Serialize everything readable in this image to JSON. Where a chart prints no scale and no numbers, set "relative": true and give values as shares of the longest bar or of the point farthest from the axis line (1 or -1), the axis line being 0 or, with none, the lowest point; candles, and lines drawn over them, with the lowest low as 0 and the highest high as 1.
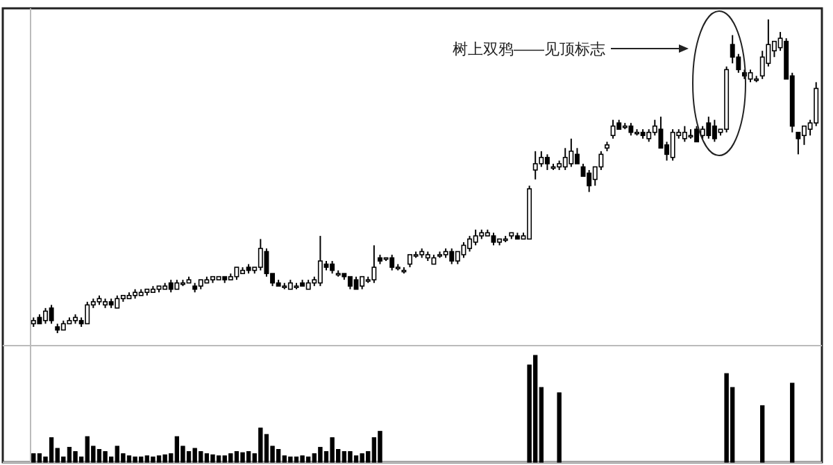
{
  "chart_data": [
    {
      "type": "candlestick",
      "relative": true,
      "color": "#000000",
      "annotations": [
        "树上双鸦——见顶标志"
      ],
      "categories": [
        null,
        null,
        null,
        null,
        null,
        null,
        null,
        null,
        null,
        null,
        null,
        null,
        null,
        null,
        null,
        null,
        null,
        null,
        null,
        null,
        null,
        null,
        null,
        null,
        null,
        null,
        null,
        null,
        null,
        null,
        null,
        null,
        null,
        null,
        null,
        null,
        null,
        null,
        null,
        null,
        null,
        null,
        null,
        null,
        null,
        null,
        null,
        null,
        null,
        null,
        null,
        null,
        null,
        null,
        null,
        null,
        null,
        null,
        null,
        null,
        null,
        null,
        null,
        null,
        null,
        null,
        null,
        null,
        null,
        null,
        null,
        null,
        null,
        null,
        null,
        null,
        null,
        null,
        null,
        null,
        null,
        null,
        null,
        null,
        null,
        null,
        null,
        null,
        null,
        null,
        null,
        null,
        null,
        null,
        null,
        null,
        null,
        null,
        null,
        null,
        null,
        null,
        null,
        null,
        null,
        null,
        null,
        null,
        null,
        null,
        null,
        null,
        null,
        null,
        null,
        null,
        null,
        null,
        null,
        null,
        null,
        null,
        null,
        null,
        null,
        null,
        null,
        null,
        null,
        null,
        null,
        null
      ],
      "ohlc": [
        [
          0.03,
          0.05,
          0.02,
          0.04
        ],
        [
          0.05,
          0.06,
          0.03,
          0.03
        ],
        [
          0.04,
          0.08,
          0.03,
          0.07
        ],
        [
          0.08,
          0.09,
          0.03,
          0.04
        ],
        [
          0.02,
          0.03,
          0,
          0.01
        ],
        [
          0.01,
          0.04,
          0.01,
          0.03
        ],
        [
          0.03,
          0.05,
          0.03,
          0.04
        ],
        [
          0.04,
          0.06,
          0.03,
          0.05
        ],
        [
          0.04,
          0.05,
          0.02,
          0.03
        ],
        [
          0.03,
          0.1,
          0.03,
          0.09
        ],
        [
          0.09,
          0.11,
          0.08,
          0.1
        ],
        [
          0.1,
          0.12,
          0.09,
          0.11
        ],
        [
          0.09,
          0.11,
          0.08,
          0.1
        ],
        [
          0.1,
          0.11,
          0.08,
          0.09
        ],
        [
          0.08,
          0.12,
          0.08,
          0.11
        ],
        [
          0.11,
          0.12,
          0.1,
          0.12
        ],
        [
          0.11,
          0.13,
          0.11,
          0.12
        ],
        [
          0.12,
          0.14,
          0.11,
          0.13
        ],
        [
          0.12,
          0.14,
          0.12,
          0.13
        ],
        [
          0.13,
          0.14,
          0.12,
          0.14
        ],
        [
          0.13,
          0.15,
          0.13,
          0.14
        ],
        [
          0.14,
          0.15,
          0.13,
          0.15
        ],
        [
          0.14,
          0.16,
          0.14,
          0.15
        ],
        [
          0.16,
          0.17,
          0.13,
          0.14
        ],
        [
          0.14,
          0.17,
          0.14,
          0.16
        ],
        [
          0.16,
          0.17,
          0.15,
          0.16
        ],
        [
          0.16,
          0.18,
          0.16,
          0.17
        ],
        [
          0.15,
          0.16,
          0.13,
          0.14
        ],
        [
          0.15,
          0.17,
          0.14,
          0.17
        ],
        [
          0.16,
          0.18,
          0.16,
          0.17
        ],
        [
          0.17,
          0.18,
          0.16,
          0.18
        ],
        [
          0.17,
          0.18,
          0.17,
          0.18
        ],
        [
          0.18,
          0.18,
          0.16,
          0.17
        ],
        [
          0.17,
          0.19,
          0.17,
          0.18
        ],
        [
          0.18,
          0.21,
          0.17,
          0.21
        ],
        [
          0.19,
          0.21,
          0.19,
          0.2
        ],
        [
          0.21,
          0.22,
          0.19,
          0.2
        ],
        [
          0.2,
          0.21,
          0.19,
          0.21
        ],
        [
          0.21,
          0.3,
          0.2,
          0.27
        ],
        [
          0.26,
          0.27,
          0.18,
          0.19
        ],
        [
          0.19,
          0.19,
          0.15,
          0.16
        ],
        [
          0.16,
          0.17,
          0.15,
          0.15
        ],
        [
          0.15,
          0.16,
          0.14,
          0.15
        ],
        [
          0.14,
          0.17,
          0.14,
          0.16
        ],
        [
          0.15,
          0.16,
          0.14,
          0.15
        ],
        [
          0.16,
          0.17,
          0.15,
          0.15
        ],
        [
          0.14,
          0.17,
          0.14,
          0.16
        ],
        [
          0.16,
          0.18,
          0.15,
          0.17
        ],
        [
          0.16,
          0.31,
          0.15,
          0.23
        ],
        [
          0.22,
          0.23,
          0.2,
          0.21
        ],
        [
          0.22,
          0.23,
          0.19,
          0.2
        ],
        [
          0.19,
          0.2,
          0.18,
          0.19
        ],
        [
          0.19,
          0.19,
          0.17,
          0.18
        ],
        [
          0.18,
          0.18,
          0.14,
          0.15
        ],
        [
          0.17,
          0.18,
          0.14,
          0.14
        ],
        [
          0.15,
          0.18,
          0.14,
          0.18
        ],
        [
          0.17,
          0.18,
          0.16,
          0.17
        ],
        [
          0.17,
          0.28,
          0.16,
          0.21
        ],
        [
          0.24,
          0.25,
          0.22,
          0.23
        ],
        [
          0.24,
          0.24,
          0.23,
          0.24
        ],
        [
          0.24,
          0.25,
          0.2,
          0.21
        ],
        [
          0.21,
          0.22,
          0.2,
          0.21
        ],
        [
          0.2,
          0.21,
          0.19,
          0.2
        ],
        [
          0.22,
          0.25,
          0.21,
          0.25
        ],
        [
          0.25,
          0.26,
          0.24,
          0.25
        ],
        [
          0.25,
          0.27,
          0.24,
          0.26
        ],
        [
          0.24,
          0.26,
          0.23,
          0.25
        ],
        [
          0.22,
          0.25,
          0.22,
          0.24
        ],
        [
          0.25,
          0.26,
          0.24,
          0.25
        ],
        [
          0.25,
          0.27,
          0.24,
          0.26
        ],
        [
          0.26,
          0.27,
          0.22,
          0.23
        ],
        [
          0.23,
          0.26,
          0.22,
          0.26
        ],
        [
          0.25,
          0.29,
          0.24,
          0.28
        ],
        [
          0.27,
          0.31,
          0.26,
          0.3
        ],
        [
          0.29,
          0.33,
          0.28,
          0.31
        ],
        [
          0.31,
          0.33,
          0.3,
          0.32
        ],
        [
          0.31,
          0.33,
          0.31,
          0.32
        ],
        [
          0.31,
          0.32,
          0.28,
          0.29
        ],
        [
          0.29,
          0.3,
          0.28,
          0.3
        ],
        [
          0.3,
          0.31,
          0.29,
          0.3
        ],
        [
          0.31,
          0.32,
          0.3,
          0.32
        ],
        [
          0.31,
          0.32,
          0.3,
          0.3
        ],
        [
          0.3,
          0.32,
          0.3,
          0.31
        ],
        [
          0.3,
          0.47,
          0.3,
          0.46
        ],
        [
          0.52,
          0.58,
          0.49,
          0.54
        ],
        [
          0.54,
          0.58,
          0.53,
          0.56
        ],
        [
          0.56,
          0.57,
          0.52,
          0.54
        ],
        [
          0.53,
          0.54,
          0.52,
          0.53
        ],
        [
          0.53,
          0.55,
          0.52,
          0.54
        ],
        [
          0.53,
          0.59,
          0.52,
          0.56
        ],
        [
          0.54,
          0.62,
          0.53,
          0.58
        ],
        [
          0.57,
          0.59,
          0.54,
          0.54
        ],
        [
          0.53,
          0.54,
          0.5,
          0.5
        ],
        [
          0.51,
          0.52,
          0.45,
          0.47
        ],
        [
          0.49,
          0.53,
          0.47,
          0.53
        ],
        [
          0.53,
          0.58,
          0.52,
          0.57
        ],
        [
          0.59,
          0.61,
          0.58,
          0.6
        ],
        [
          0.63,
          0.68,
          0.62,
          0.66
        ],
        [
          0.67,
          0.68,
          0.65,
          0.65
        ],
        [
          0.66,
          0.67,
          0.65,
          0.66
        ],
        [
          0.66,
          0.67,
          0.63,
          0.64
        ],
        [
          0.64,
          0.65,
          0.63,
          0.64
        ],
        [
          0.64,
          0.65,
          0.62,
          0.63
        ],
        [
          0.62,
          0.65,
          0.61,
          0.64
        ],
        [
          0.64,
          0.68,
          0.63,
          0.66
        ],
        [
          0.65,
          0.69,
          0.59,
          0.59
        ],
        [
          0.6,
          0.61,
          0.55,
          0.57
        ],
        [
          0.56,
          0.65,
          0.55,
          0.64
        ],
        [
          0.63,
          0.65,
          0.62,
          0.64
        ],
        [
          0.62,
          0.66,
          0.61,
          0.64
        ],
        [
          0.63,
          0.65,
          0.62,
          0.63
        ],
        [
          0.65,
          0.66,
          0.61,
          0.61
        ],
        [
          0.63,
          0.66,
          0.62,
          0.65
        ],
        [
          0.67,
          0.69,
          0.62,
          0.63
        ],
        [
          0.66,
          0.68,
          0.61,
          0.62
        ],
        [
          0.64,
          0.65,
          0.63,
          0.65
        ],
        [
          0.65,
          0.85,
          0.64,
          0.84
        ],
        [
          0.92,
          0.95,
          0.86,
          0.88
        ],
        [
          0.88,
          0.89,
          0.83,
          0.84
        ],
        [
          0.83,
          0.84,
          0.81,
          0.82
        ],
        [
          0.81,
          0.84,
          0.8,
          0.83
        ],
        [
          0.81,
          0.82,
          0.8,
          0.81
        ],
        [
          0.82,
          0.9,
          0.81,
          0.88
        ],
        [
          0.86,
          1,
          0.85,
          0.92
        ],
        [
          0.9,
          0.93,
          0.88,
          0.93
        ],
        [
          0.91,
          0.96,
          0.9,
          0.94
        ],
        [
          0.93,
          0.94,
          0.81,
          0.81
        ],
        [
          0.82,
          0.83,
          0.64,
          0.66
        ],
        [
          0.64,
          0.64,
          0.57,
          0.62
        ],
        [
          0.63,
          0.66,
          0.6,
          0.66
        ],
        [
          0.65,
          0.68,
          0.63,
          0.67
        ],
        [
          0.67,
          0.8,
          0.66,
          0.78
        ]
      ]
    },
    {
      "type": "bar",
      "relative": true,
      "color": "#000000",
      "categories": [
        null,
        null,
        null,
        null,
        null,
        null,
        null,
        null,
        null,
        null,
        null,
        null,
        null,
        null,
        null,
        null,
        null,
        null,
        null,
        null,
        null,
        null,
        null,
        null,
        null,
        null,
        null,
        null,
        null,
        null,
        null,
        null,
        null,
        null,
        null,
        null,
        null,
        null,
        null,
        null,
        null,
        null,
        null,
        null,
        null,
        null,
        null,
        null,
        null,
        null,
        null,
        null,
        null,
        null,
        null,
        null,
        null,
        null,
        null,
        null,
        null,
        null,
        null,
        null,
        null,
        null,
        null,
        null,
        null,
        null,
        null,
        null,
        null,
        null,
        null,
        null,
        null,
        null,
        null,
        null,
        null,
        null,
        null,
        null,
        null,
        null,
        null,
        null,
        null,
        null,
        null,
        null,
        null,
        null,
        null,
        null,
        null,
        null,
        null,
        null,
        null,
        null,
        null,
        null,
        null,
        null,
        null,
        null,
        null,
        null,
        null,
        null,
        null,
        null,
        null,
        null,
        null,
        null,
        null,
        null,
        null,
        null,
        null,
        null,
        null,
        null,
        null,
        null,
        null,
        null,
        null,
        null
      ],
      "values": [
        0.08,
        0.08,
        0.05,
        0.23,
        0.13,
        0.05,
        0.14,
        0.1,
        0.05,
        0.24,
        0.15,
        0.12,
        0.1,
        0.05,
        0.15,
        0.08,
        0.06,
        0.05,
        0.05,
        0.06,
        0.05,
        0.06,
        0.07,
        0.08,
        0.24,
        0.15,
        0.1,
        0.13,
        0.1,
        0.08,
        0.07,
        0.06,
        0.06,
        0.08,
        0.1,
        0.09,
        0.1,
        0.08,
        0.32,
        0.26,
        0.15,
        0.12,
        0.06,
        0.05,
        0.05,
        0.06,
        0.05,
        0.08,
        0.14,
        0.1,
        0.23,
        0.12,
        0.1,
        0.1,
        0.06,
        0.08,
        0.1,
        0.23,
        0.29,
        null,
        null,
        null,
        null,
        null,
        null,
        null,
        null,
        null,
        null,
        null,
        null,
        null,
        null,
        null,
        null,
        null,
        null,
        null,
        null,
        null,
        null,
        null,
        null,
        0.91,
        1,
        0.7,
        null,
        null,
        0.65,
        null,
        null,
        null,
        null,
        null,
        null,
        null,
        null,
        null,
        null,
        null,
        null,
        null,
        null,
        null,
        null,
        null,
        null,
        null,
        null,
        null,
        null,
        null,
        null,
        null,
        null,
        null,
        0.83,
        0.7,
        null,
        null,
        null,
        null,
        0.53,
        null,
        null,
        null,
        null,
        0.74,
        null,
        null,
        null,
        null
      ]
    }
  ]
}
